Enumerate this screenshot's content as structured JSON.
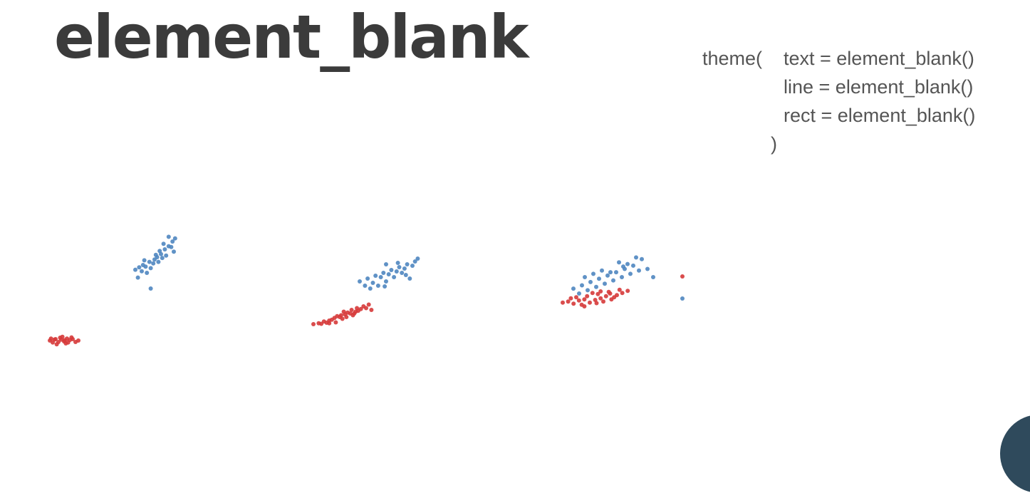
{
  "slide": {
    "title": "element_blank"
  },
  "code": {
    "line1_prefix": "theme(",
    "line1_arg": "text = element_blank()",
    "line2_arg": "line = element_blank()",
    "line3_arg": "rect = element_blank()",
    "closing": ")"
  },
  "colors": {
    "red": "#d63a3a",
    "blue": "#4f86c0"
  },
  "chart_data": {
    "type": "scatter",
    "title": "",
    "xlabel": "",
    "ylabel": "",
    "axes_visible": false,
    "grid": false,
    "legend": "none",
    "series": [
      {
        "color": "red",
        "points": [
          [
            1.0,
            1.55
          ],
          [
            1.1,
            1.6
          ],
          [
            1.2,
            1.58
          ],
          [
            1.3,
            1.62
          ],
          [
            1.15,
            1.5
          ],
          [
            1.25,
            1.52
          ],
          [
            1.05,
            1.48
          ],
          [
            1.35,
            1.57
          ],
          [
            1.4,
            1.6
          ],
          [
            1.18,
            1.65
          ],
          [
            1.28,
            1.45
          ],
          [
            1.08,
            1.58
          ],
          [
            1.22,
            1.68
          ],
          [
            1.32,
            1.48
          ],
          [
            1.5,
            1.55
          ],
          [
            1.45,
            1.5
          ],
          [
            1.12,
            1.42
          ],
          [
            1.38,
            1.66
          ],
          [
            1.02,
            1.62
          ],
          [
            1.26,
            1.56
          ],
          [
            3.0,
            3.9
          ],
          [
            3.2,
            3.95
          ],
          [
            3.4,
            4.05
          ],
          [
            3.6,
            4.1
          ],
          [
            3.8,
            4.25
          ],
          [
            4.0,
            4.3
          ],
          [
            4.2,
            4.45
          ],
          [
            4.4,
            4.5
          ],
          [
            4.6,
            4.6
          ],
          [
            4.8,
            4.75
          ],
          [
            5.0,
            4.8
          ],
          [
            3.5,
            3.98
          ],
          [
            3.7,
            4.15
          ],
          [
            3.9,
            4.35
          ],
          [
            4.1,
            4.2
          ],
          [
            4.3,
            4.55
          ],
          [
            4.5,
            4.4
          ],
          [
            4.7,
            4.65
          ],
          [
            4.9,
            4.9
          ],
          [
            5.1,
            5.0
          ],
          [
            3.3,
            3.92
          ],
          [
            4.15,
            4.6
          ],
          [
            4.45,
            4.7
          ],
          [
            4.65,
            4.8
          ],
          [
            3.85,
            4.0
          ],
          [
            4.25,
            4.3
          ],
          [
            4.55,
            4.5
          ],
          [
            5.2,
            4.7
          ],
          [
            3.6,
            3.95
          ],
          [
            4.05,
            4.4
          ],
          [
            4.8,
            5.7
          ],
          [
            5.0,
            5.8
          ],
          [
            5.2,
            5.6
          ],
          [
            5.4,
            5.9
          ],
          [
            5.6,
            6.0
          ],
          [
            5.8,
            5.7
          ],
          [
            6.0,
            5.95
          ],
          [
            6.2,
            6.1
          ],
          [
            6.4,
            6.3
          ],
          [
            6.6,
            6.0
          ],
          [
            6.8,
            6.4
          ],
          [
            7.0,
            6.6
          ],
          [
            5.3,
            6.2
          ],
          [
            5.7,
            6.3
          ],
          [
            6.1,
            6.5
          ],
          [
            6.5,
            6.7
          ],
          [
            6.9,
            6.9
          ],
          [
            5.5,
            5.5
          ],
          [
            6.3,
            5.8
          ],
          [
            6.7,
            6.2
          ],
          [
            5.9,
            6.6
          ],
          [
            5.1,
            6.1
          ],
          [
            6.05,
            5.65
          ],
          [
            6.55,
            6.55
          ],
          [
            7.2,
            6.8
          ],
          [
            5.6,
            5.35
          ],
          [
            6.2,
            6.75
          ],
          [
            9.0,
            9.3
          ]
        ]
      },
      {
        "color": "blue",
        "points": [
          [
            4.4,
            3.6
          ],
          [
            4.55,
            4.0
          ],
          [
            4.7,
            4.3
          ],
          [
            4.85,
            4.6
          ],
          [
            5.0,
            4.5
          ],
          [
            5.15,
            4.9
          ],
          [
            5.3,
            5.1
          ],
          [
            5.45,
            5.4
          ],
          [
            5.6,
            5.6
          ],
          [
            5.75,
            5.9
          ],
          [
            4.6,
            4.4
          ],
          [
            4.9,
            4.2
          ],
          [
            5.05,
            4.75
          ],
          [
            5.25,
            5.3
          ],
          [
            5.5,
            5.0
          ],
          [
            5.7,
            5.55
          ],
          [
            4.75,
            3.9
          ],
          [
            5.4,
            5.75
          ],
          [
            5.85,
            6.1
          ],
          [
            5.2,
            4.6
          ],
          [
            4.3,
            4.1
          ],
          [
            5.6,
            6.2
          ],
          [
            4.9,
            2.9
          ],
          [
            5.35,
            4.85
          ],
          [
            4.45,
            4.25
          ],
          [
            5.8,
            5.25
          ],
          [
            4.65,
            4.7
          ],
          [
            5.1,
            5.05
          ],
          [
            5.0,
            5.3
          ],
          [
            5.3,
            5.5
          ],
          [
            5.6,
            5.7
          ],
          [
            5.9,
            5.9
          ],
          [
            6.2,
            6.1
          ],
          [
            6.5,
            6.3
          ],
          [
            6.8,
            6.5
          ],
          [
            7.1,
            6.7
          ],
          [
            5.5,
            5.2
          ],
          [
            5.8,
            5.6
          ],
          [
            6.1,
            5.8
          ],
          [
            6.4,
            6.0
          ],
          [
            6.7,
            6.2
          ],
          [
            7.0,
            6.4
          ],
          [
            5.4,
            4.8
          ],
          [
            5.7,
            5.0
          ],
          [
            6.0,
            5.3
          ],
          [
            6.3,
            5.6
          ],
          [
            6.6,
            5.9
          ],
          [
            6.9,
            5.5
          ],
          [
            7.2,
            6.9
          ],
          [
            6.0,
            6.5
          ],
          [
            5.2,
            5.0
          ],
          [
            6.45,
            6.6
          ],
          [
            5.95,
            4.95
          ],
          [
            6.75,
            5.75
          ],
          [
            5.6,
            5.8
          ],
          [
            5.9,
            6.0
          ],
          [
            6.2,
            6.2
          ],
          [
            6.5,
            6.4
          ],
          [
            6.8,
            6.6
          ],
          [
            7.1,
            6.8
          ],
          [
            7.4,
            7.0
          ],
          [
            7.7,
            7.2
          ],
          [
            5.8,
            5.5
          ],
          [
            6.1,
            5.7
          ],
          [
            6.4,
            5.9
          ],
          [
            6.7,
            6.1
          ],
          [
            7.0,
            6.3
          ],
          [
            7.3,
            6.5
          ],
          [
            7.6,
            6.7
          ],
          [
            7.9,
            6.9
          ],
          [
            6.0,
            6.5
          ],
          [
            6.6,
            6.9
          ],
          [
            7.2,
            7.4
          ],
          [
            7.8,
            7.7
          ],
          [
            8.0,
            7.6
          ],
          [
            6.3,
            6.7
          ],
          [
            6.9,
            6.8
          ],
          [
            7.5,
            7.3
          ],
          [
            8.2,
            7.0
          ],
          [
            8.4,
            6.5
          ],
          [
            7.35,
            7.15
          ],
          [
            9.0,
            5.1
          ]
        ]
      }
    ]
  }
}
